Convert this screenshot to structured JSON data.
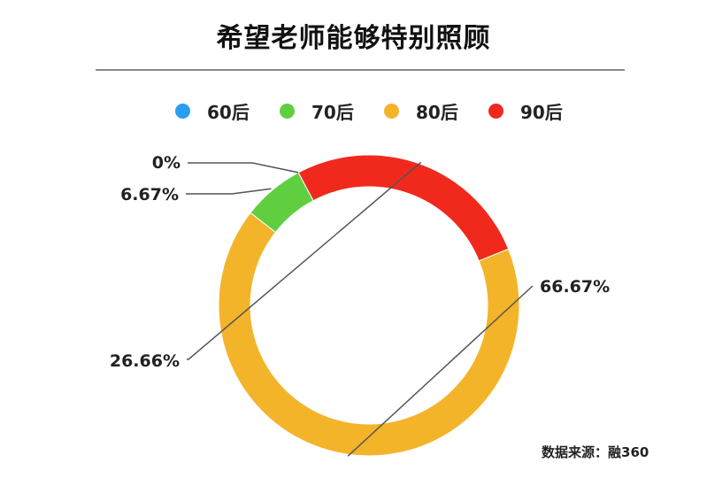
{
  "title": "希望老师能够特别照顾",
  "source": "数据来源：融360",
  "colors": {
    "60后": "#2a9df4",
    "70后": "#5fcf3f",
    "80后": "#f4b42a",
    "90后": "#f1291d"
  },
  "chart_data": {
    "type": "pie",
    "variant": "donut",
    "categories": [
      "60后",
      "70后",
      "80后",
      "90后"
    ],
    "values": [
      0,
      6.67,
      66.67,
      26.66
    ],
    "labels": [
      "0%",
      "6.67%",
      "66.67%",
      "26.66%"
    ],
    "legend_placement": "top"
  }
}
